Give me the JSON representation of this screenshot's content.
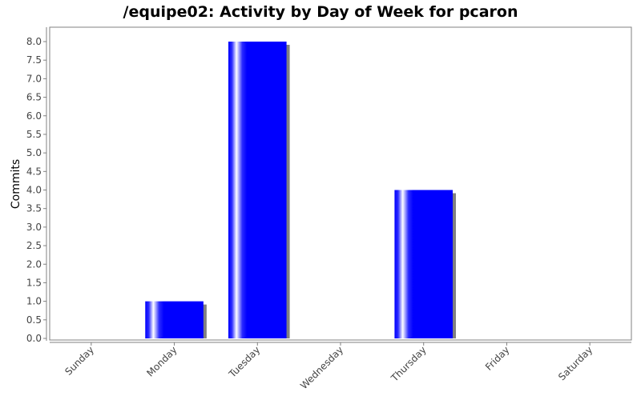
{
  "chart_data": {
    "type": "bar",
    "title": "/equipe02: Activity by Day of Week for pcaron",
    "xlabel": "",
    "ylabel": "Commits",
    "categories": [
      "Sunday",
      "Monday",
      "Tuesday",
      "Wednesday",
      "Thursday",
      "Friday",
      "Saturday"
    ],
    "values": [
      0,
      1,
      8,
      0,
      4,
      0,
      0
    ],
    "ylim": [
      0,
      8.4
    ],
    "yticks": [
      "0.0",
      "0.5",
      "1.0",
      "1.5",
      "2.0",
      "2.5",
      "3.0",
      "3.5",
      "4.0",
      "4.5",
      "5.0",
      "5.5",
      "6.0",
      "6.5",
      "7.0",
      "7.5",
      "8.0"
    ],
    "grid": false,
    "legend": "none",
    "colors": {
      "bar": "#0000ff",
      "highlight": "#ffffff",
      "shadow": "#808080",
      "frame": "#808080"
    }
  }
}
